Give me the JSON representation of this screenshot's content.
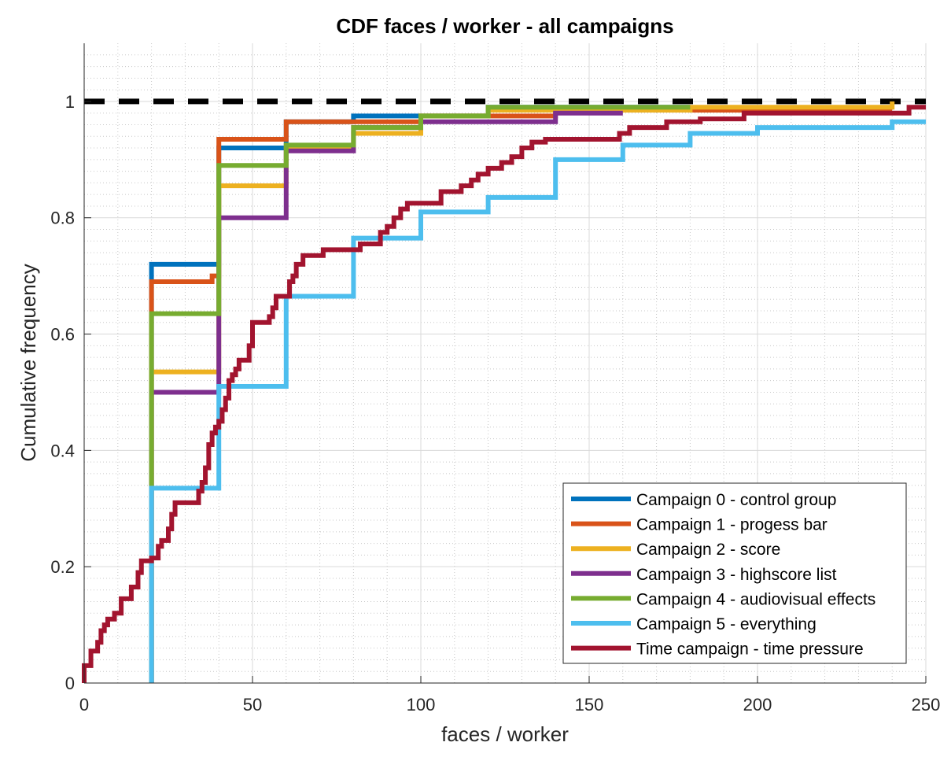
{
  "chart_data": {
    "type": "line",
    "subtype": "step-cdf",
    "title": "CDF faces / worker - all campaigns",
    "xlabel": "faces / worker",
    "ylabel": "Cumulative frequency",
    "xlim": [
      0,
      250
    ],
    "ylim": [
      0,
      1.1
    ],
    "xticks": [
      0,
      50,
      100,
      150,
      200,
      250
    ],
    "yticks": [
      0,
      0.2,
      0.4,
      0.6,
      0.8,
      1
    ],
    "xticklabels": [
      "0",
      "50",
      "100",
      "150",
      "200",
      "250"
    ],
    "yticklabels": [
      "0",
      "0.2",
      "0.4",
      "0.6",
      "0.8",
      "1"
    ],
    "grid": true,
    "minor_grid": true,
    "legend_position": "bottom-right",
    "reference_line": {
      "y": 1,
      "style": "dashed",
      "color": "#000000"
    },
    "series": [
      {
        "name": "Campaign 0 - control group",
        "color": "#0072BD",
        "points": [
          [
            20,
            0
          ],
          [
            20,
            0.72
          ],
          [
            40,
            0.72
          ],
          [
            40,
            0.92
          ],
          [
            60,
            0.92
          ],
          [
            60,
            0.965
          ],
          [
            80,
            0.965
          ],
          [
            80,
            0.975
          ],
          [
            120,
            0.975
          ],
          [
            120,
            0.99
          ],
          [
            180,
            0.99
          ]
        ]
      },
      {
        "name": "Campaign 1 - progess bar",
        "color": "#D95319",
        "points": [
          [
            20,
            0
          ],
          [
            20,
            0.69
          ],
          [
            38,
            0.69
          ],
          [
            38,
            0.7
          ],
          [
            40,
            0.7
          ],
          [
            40,
            0.935
          ],
          [
            60,
            0.935
          ],
          [
            60,
            0.965
          ],
          [
            100,
            0.965
          ],
          [
            100,
            0.975
          ],
          [
            140,
            0.975
          ],
          [
            140,
            0.985
          ],
          [
            240,
            0.985
          ]
        ]
      },
      {
        "name": "Campaign 2 - score",
        "color": "#EDB120",
        "points": [
          [
            20,
            0
          ],
          [
            20,
            0.535
          ],
          [
            40,
            0.535
          ],
          [
            40,
            0.855
          ],
          [
            60,
            0.855
          ],
          [
            60,
            0.92
          ],
          [
            80,
            0.92
          ],
          [
            80,
            0.945
          ],
          [
            100,
            0.945
          ],
          [
            100,
            0.975
          ],
          [
            120,
            0.975
          ],
          [
            120,
            0.985
          ],
          [
            180,
            0.985
          ],
          [
            180,
            0.99
          ],
          [
            240,
            0.99
          ],
          [
            240,
            1.0
          ]
        ]
      },
      {
        "name": "Campaign 3 - highscore list",
        "color": "#7E2F8E",
        "points": [
          [
            20,
            0
          ],
          [
            20,
            0.5
          ],
          [
            40,
            0.5
          ],
          [
            40,
            0.8
          ],
          [
            60,
            0.8
          ],
          [
            60,
            0.915
          ],
          [
            80,
            0.915
          ],
          [
            80,
            0.955
          ],
          [
            100,
            0.955
          ],
          [
            100,
            0.965
          ],
          [
            140,
            0.965
          ],
          [
            140,
            0.98
          ],
          [
            160,
            0.98
          ]
        ]
      },
      {
        "name": "Campaign 4 - audiovisual effects",
        "color": "#77AC30",
        "points": [
          [
            20,
            0
          ],
          [
            20,
            0.635
          ],
          [
            40,
            0.635
          ],
          [
            40,
            0.89
          ],
          [
            60,
            0.89
          ],
          [
            60,
            0.925
          ],
          [
            80,
            0.925
          ],
          [
            80,
            0.955
          ],
          [
            100,
            0.955
          ],
          [
            100,
            0.975
          ],
          [
            120,
            0.975
          ],
          [
            120,
            0.99
          ],
          [
            180,
            0.99
          ]
        ]
      },
      {
        "name": "Campaign 5 - everything",
        "color": "#4DBEEE",
        "points": [
          [
            20,
            0
          ],
          [
            20,
            0.335
          ],
          [
            40,
            0.335
          ],
          [
            40,
            0.51
          ],
          [
            60,
            0.51
          ],
          [
            60,
            0.665
          ],
          [
            80,
            0.665
          ],
          [
            80,
            0.765
          ],
          [
            100,
            0.765
          ],
          [
            100,
            0.81
          ],
          [
            120,
            0.81
          ],
          [
            120,
            0.835
          ],
          [
            140,
            0.835
          ],
          [
            140,
            0.9
          ],
          [
            160,
            0.9
          ],
          [
            160,
            0.925
          ],
          [
            180,
            0.925
          ],
          [
            180,
            0.945
          ],
          [
            200,
            0.945
          ],
          [
            200,
            0.955
          ],
          [
            240,
            0.955
          ],
          [
            240,
            0.965
          ],
          [
            250,
            0.965
          ]
        ]
      },
      {
        "name": "Time campaign - time pressure",
        "color": "#A2142F",
        "points": [
          [
            0,
            0
          ],
          [
            0,
            0.03
          ],
          [
            2,
            0.03
          ],
          [
            2,
            0.055
          ],
          [
            4,
            0.055
          ],
          [
            4,
            0.07
          ],
          [
            5,
            0.07
          ],
          [
            5,
            0.09
          ],
          [
            6,
            0.09
          ],
          [
            6,
            0.1
          ],
          [
            7,
            0.1
          ],
          [
            7,
            0.11
          ],
          [
            9,
            0.11
          ],
          [
            9,
            0.12
          ],
          [
            11,
            0.12
          ],
          [
            11,
            0.145
          ],
          [
            14,
            0.145
          ],
          [
            14,
            0.165
          ],
          [
            16,
            0.165
          ],
          [
            16,
            0.19
          ],
          [
            17,
            0.19
          ],
          [
            17,
            0.21
          ],
          [
            20,
            0.21
          ],
          [
            20,
            0.215
          ],
          [
            22,
            0.215
          ],
          [
            22,
            0.235
          ],
          [
            23,
            0.235
          ],
          [
            23,
            0.245
          ],
          [
            25,
            0.245
          ],
          [
            25,
            0.265
          ],
          [
            26,
            0.265
          ],
          [
            26,
            0.29
          ],
          [
            27,
            0.29
          ],
          [
            27,
            0.31
          ],
          [
            34,
            0.31
          ],
          [
            34,
            0.33
          ],
          [
            35,
            0.33
          ],
          [
            35,
            0.345
          ],
          [
            36,
            0.345
          ],
          [
            36,
            0.37
          ],
          [
            37,
            0.37
          ],
          [
            37,
            0.41
          ],
          [
            38,
            0.41
          ],
          [
            38,
            0.43
          ],
          [
            39,
            0.43
          ],
          [
            39,
            0.44
          ],
          [
            40,
            0.44
          ],
          [
            40,
            0.45
          ],
          [
            41,
            0.45
          ],
          [
            41,
            0.47
          ],
          [
            42,
            0.47
          ],
          [
            42,
            0.49
          ],
          [
            43,
            0.49
          ],
          [
            43,
            0.52
          ],
          [
            44,
            0.52
          ],
          [
            44,
            0.53
          ],
          [
            45,
            0.53
          ],
          [
            45,
            0.54
          ],
          [
            46,
            0.54
          ],
          [
            46,
            0.555
          ],
          [
            49,
            0.555
          ],
          [
            49,
            0.58
          ],
          [
            50,
            0.58
          ],
          [
            50,
            0.62
          ],
          [
            55,
            0.62
          ],
          [
            55,
            0.63
          ],
          [
            56,
            0.63
          ],
          [
            56,
            0.645
          ],
          [
            57,
            0.645
          ],
          [
            57,
            0.665
          ],
          [
            61,
            0.665
          ],
          [
            61,
            0.69
          ],
          [
            62,
            0.69
          ],
          [
            62,
            0.7
          ],
          [
            63,
            0.7
          ],
          [
            63,
            0.72
          ],
          [
            65,
            0.72
          ],
          [
            65,
            0.735
          ],
          [
            71,
            0.735
          ],
          [
            71,
            0.745
          ],
          [
            82,
            0.745
          ],
          [
            82,
            0.755
          ],
          [
            88,
            0.755
          ],
          [
            88,
            0.775
          ],
          [
            90,
            0.775
          ],
          [
            90,
            0.785
          ],
          [
            92,
            0.785
          ],
          [
            92,
            0.8
          ],
          [
            94,
            0.8
          ],
          [
            94,
            0.815
          ],
          [
            96,
            0.815
          ],
          [
            96,
            0.825
          ],
          [
            106,
            0.825
          ],
          [
            106,
            0.845
          ],
          [
            112,
            0.845
          ],
          [
            112,
            0.855
          ],
          [
            115,
            0.855
          ],
          [
            115,
            0.865
          ],
          [
            117,
            0.865
          ],
          [
            117,
            0.875
          ],
          [
            120,
            0.875
          ],
          [
            120,
            0.885
          ],
          [
            124,
            0.885
          ],
          [
            124,
            0.895
          ],
          [
            127,
            0.895
          ],
          [
            127,
            0.905
          ],
          [
            130,
            0.905
          ],
          [
            130,
            0.92
          ],
          [
            133,
            0.92
          ],
          [
            133,
            0.93
          ],
          [
            137,
            0.93
          ],
          [
            137,
            0.935
          ],
          [
            159,
            0.935
          ],
          [
            159,
            0.945
          ],
          [
            162,
            0.945
          ],
          [
            162,
            0.955
          ],
          [
            173,
            0.955
          ],
          [
            173,
            0.965
          ],
          [
            183,
            0.965
          ],
          [
            183,
            0.97
          ],
          [
            196,
            0.97
          ],
          [
            196,
            0.98
          ],
          [
            245,
            0.98
          ],
          [
            245,
            0.99
          ],
          [
            250,
            0.99
          ]
        ]
      }
    ]
  }
}
